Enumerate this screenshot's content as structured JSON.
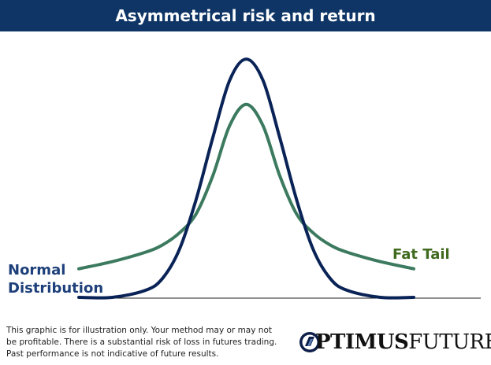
{
  "title": "Asymmetrical risk and return",
  "chart_data": {
    "type": "line",
    "title": "Asymmetrical risk and return",
    "xlabel": "",
    "ylabel": "",
    "xlim": [
      -5,
      5
    ],
    "ylim": [
      0,
      1.05
    ],
    "grid": false,
    "series": [
      {
        "name": "Normal Distribution",
        "color": "#0a2357",
        "x": [
          -5,
          -4,
          -3,
          -2.5,
          -2,
          -1.5,
          -1,
          -0.5,
          0,
          0.5,
          1,
          1.5,
          2,
          2.5,
          3,
          4,
          5
        ],
        "y": [
          0.0,
          0.0,
          0.03,
          0.08,
          0.2,
          0.41,
          0.67,
          0.91,
          1.0,
          0.91,
          0.67,
          0.41,
          0.2,
          0.08,
          0.03,
          0.0,
          0.0
        ]
      },
      {
        "name": "Fat Tail",
        "color": "#3c7a5f",
        "x": [
          -5,
          -4,
          -3,
          -2.5,
          -2,
          -1.5,
          -1,
          -0.5,
          0,
          0.5,
          1,
          1.5,
          2,
          2.5,
          3,
          4,
          5
        ],
        "y": [
          0.12,
          0.15,
          0.19,
          0.22,
          0.27,
          0.35,
          0.51,
          0.72,
          0.81,
          0.72,
          0.51,
          0.35,
          0.27,
          0.22,
          0.19,
          0.15,
          0.12
        ]
      }
    ],
    "annotations": [
      "Normal Distribution",
      "Fat Tail"
    ]
  },
  "labels": {
    "normal_line1": "Normal",
    "normal_line2": "Distribution",
    "fat_tail": "Fat Tail"
  },
  "disclaimer": "This graphic is for illustration only. Your method may or may not be profitable. There is a substantial risk of loss in futures trading. Past performance is not indicative of future results.",
  "logo": {
    "part1": "PTIMUS",
    "part2": "FUTURES"
  }
}
